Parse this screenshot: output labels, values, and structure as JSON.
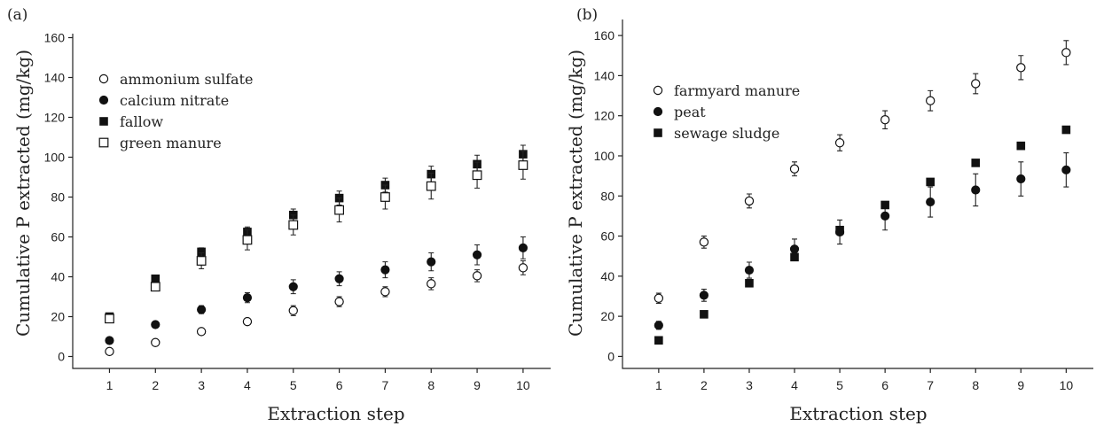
{
  "chart_data": [
    {
      "type": "scatter",
      "panel_label": "(a)",
      "xlabel": "Extraction step",
      "ylabel": "Cumulative P extracted (mg/kg)",
      "x": [
        1,
        2,
        3,
        4,
        5,
        6,
        7,
        8,
        9,
        10
      ],
      "xlim": [
        0.2,
        10.6
      ],
      "ylim": [
        -6,
        162
      ],
      "yticks": [
        0,
        20,
        40,
        60,
        80,
        100,
        120,
        140,
        160
      ],
      "grid": false,
      "legend": "top-left",
      "series": [
        {
          "name": "ammonium sulfate",
          "marker": "open-circle",
          "values": [
            2.5,
            7,
            12.5,
            17.5,
            23,
            27.5,
            32.5,
            36.5,
            40.5,
            44.5
          ],
          "errors": [
            1.2,
            1.3,
            1.5,
            1.5,
            2.5,
            2.5,
            2.5,
            3,
            3,
            3.5
          ]
        },
        {
          "name": "calcium nitrate",
          "marker": "filled-circle",
          "values": [
            8,
            16,
            23.5,
            29.5,
            35,
            39,
            43.5,
            47.5,
            51,
            54.5
          ],
          "errors": [
            1,
            1.5,
            2,
            2.5,
            3.5,
            3.5,
            4,
            4.5,
            5,
            5.5
          ]
        },
        {
          "name": "fallow",
          "marker": "filled-square",
          "values": [
            20,
            39,
            52.5,
            62.5,
            71,
            79.5,
            86,
            91.5,
            96.5,
            101.5
          ],
          "errors": [
            1,
            1.5,
            2,
            2.5,
            3,
            3.5,
            3.5,
            4,
            4.5,
            4.5
          ]
        },
        {
          "name": "green manure",
          "marker": "open-square",
          "values": [
            19,
            35,
            48,
            58.5,
            66,
            73.5,
            80,
            85.5,
            91,
            96
          ],
          "errors": [
            1,
            2,
            4,
            5,
            5,
            6,
            6,
            6.5,
            6.5,
            7
          ]
        }
      ]
    },
    {
      "type": "scatter",
      "panel_label": "(b)",
      "xlabel": "Extraction step",
      "ylabel": "Cumulative P extracted (mg/kg)",
      "x": [
        1,
        2,
        3,
        4,
        5,
        6,
        7,
        8,
        9,
        10
      ],
      "xlim": [
        0.2,
        10.6
      ],
      "ylim": [
        -6,
        168
      ],
      "yticks": [
        0,
        20,
        40,
        60,
        80,
        100,
        120,
        140,
        160
      ],
      "grid": false,
      "legend": "top-left",
      "series": [
        {
          "name": "farmyard manure",
          "marker": "open-circle",
          "values": [
            29,
            57,
            77.5,
            93.5,
            106.5,
            118,
            127.5,
            136,
            144,
            151.5
          ],
          "errors": [
            2.5,
            3,
            3.5,
            3.5,
            4,
            4.5,
            5,
            5,
            6,
            6
          ]
        },
        {
          "name": "peat",
          "marker": "filled-circle",
          "values": [
            15.5,
            30.5,
            43,
            53.5,
            62,
            70,
            77,
            83,
            88.5,
            93
          ],
          "errors": [
            2,
            3,
            4,
            5,
            6,
            7,
            7.5,
            8,
            8.5,
            8.5
          ]
        },
        {
          "name": "sewage sludge",
          "marker": "filled-square",
          "values": [
            8,
            21,
            36.5,
            49.5,
            63,
            75.5,
            87,
            96.5,
            105,
            113
          ],
          "errors": [
            0,
            0,
            0,
            0,
            0,
            0,
            0,
            0,
            0,
            0
          ]
        }
      ]
    }
  ]
}
